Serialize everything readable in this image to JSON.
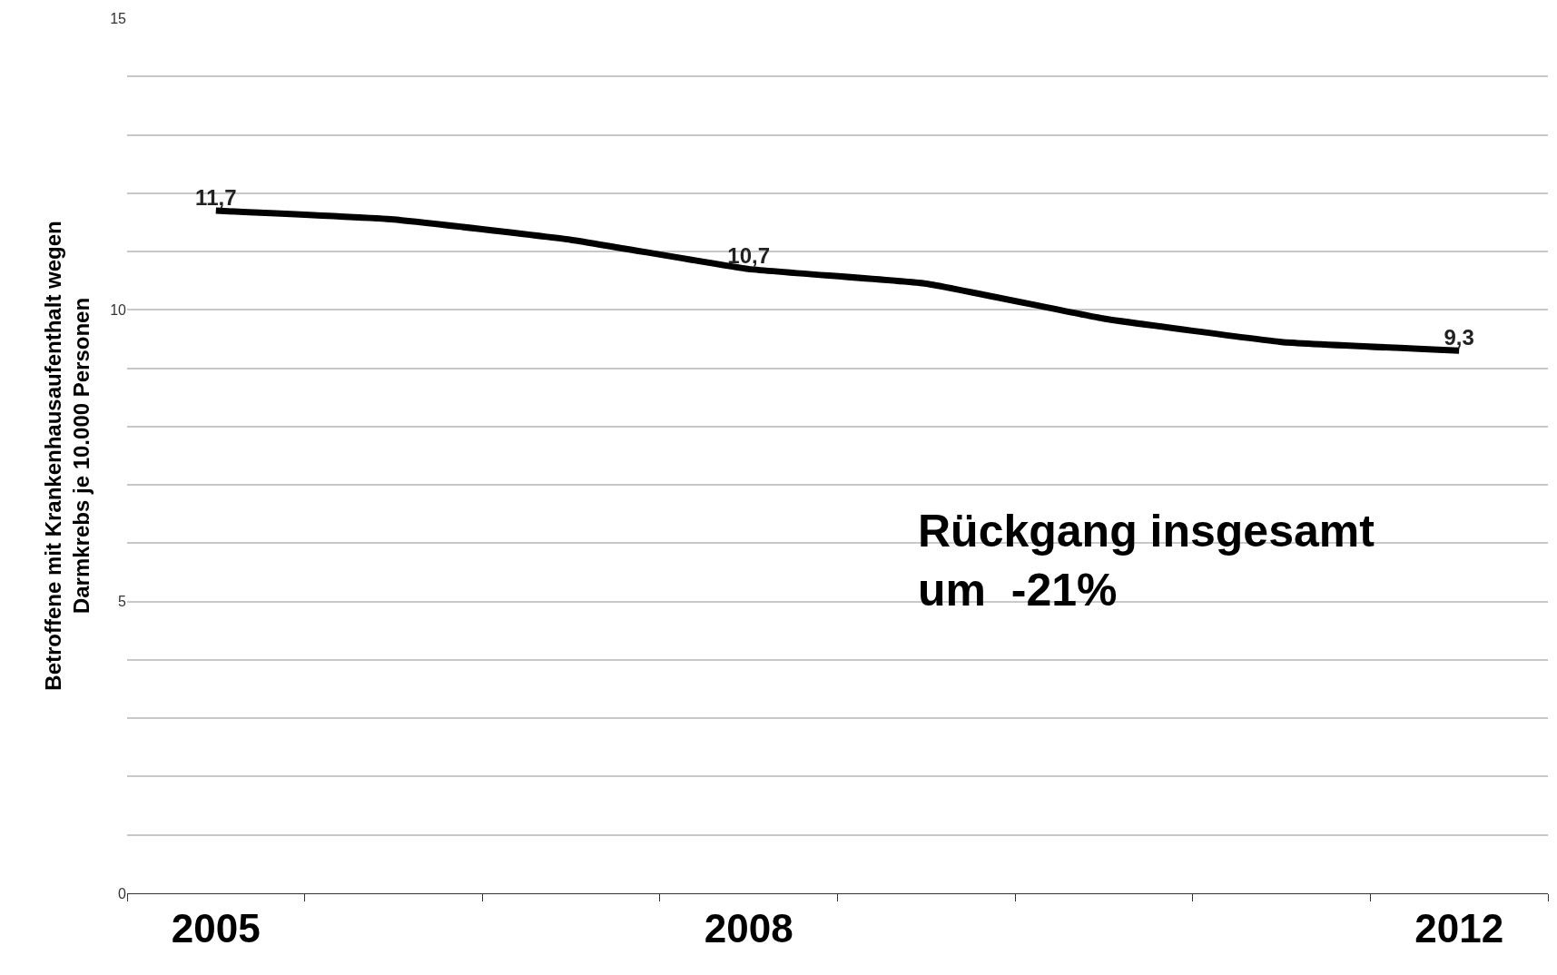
{
  "chart_data": {
    "type": "line",
    "ylabel": "Betroffene mit Krankenhausaufenthalt wegen\nDarmkrebs je 10.000 Personen",
    "categories": [
      "2005",
      null,
      null,
      "2008",
      null,
      null,
      null,
      "2012"
    ],
    "series": [
      {
        "color": "#000000",
        "values": [
          11.7,
          11.55,
          11.2,
          10.7,
          10.45,
          9.85,
          9.45,
          9.3
        ],
        "value_labels": [
          "11,7",
          null,
          null,
          "10,7",
          null,
          null,
          null,
          "9,3"
        ]
      }
    ],
    "ylim": [
      0,
      15
    ],
    "yticks": [
      0,
      {
        "value": 1,
        "label": null
      },
      {
        "value": 2,
        "label": null
      },
      {
        "value": 3,
        "label": null
      },
      {
        "value": 4,
        "label": null
      },
      5,
      {
        "value": 6,
        "label": null
      },
      {
        "value": 7,
        "label": null
      },
      {
        "value": 8,
        "label": null
      },
      {
        "value": 9,
        "label": null
      },
      10,
      {
        "value": 11,
        "label": null
      },
      {
        "value": 12,
        "label": null
      },
      {
        "value": 13,
        "label": null
      },
      {
        "value": 14,
        "label": null
      },
      15
    ],
    "grid": "y",
    "marker": "none",
    "line_style": "solid",
    "annotations": [
      "Rückgang insgesamt\num  -21%"
    ]
  }
}
